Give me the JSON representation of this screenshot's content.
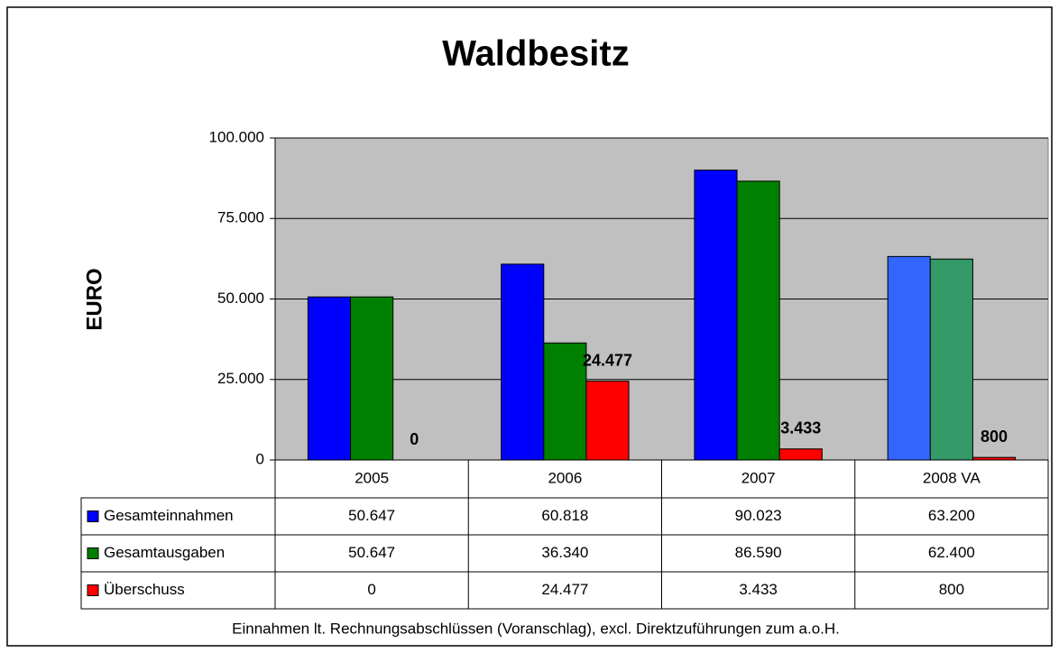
{
  "chart_data": {
    "type": "bar",
    "title": "Waldbesitz",
    "y_label": "EURO",
    "footnote": "Einnahmen lt. Rechnungsabschlüssen (Voranschlag), excl. Direktzuführungen zum a.o.H.",
    "categories": [
      "2005",
      "2006",
      "2007",
      "2008 VA"
    ],
    "series": [
      {
        "name": "Gesamteinnahmen",
        "color": "#0000ff",
        "point_colors": [
          "#0000ff",
          "#0000ff",
          "#0000ff",
          "#3366ff"
        ],
        "values": [
          50647,
          60818,
          90023,
          63200
        ],
        "value_labels": [
          "50.647",
          "60.818",
          "90.023",
          "63.200"
        ]
      },
      {
        "name": "Gesamtausgaben",
        "color": "#008000",
        "point_colors": [
          "#008000",
          "#008000",
          "#008000",
          "#339966"
        ],
        "values": [
          50647,
          36340,
          86590,
          62400
        ],
        "value_labels": [
          "50.647",
          "36.340",
          "86.590",
          "62.400"
        ]
      },
      {
        "name": "Überschuss",
        "color": "#ff0000",
        "point_colors": [
          "#ff0000",
          "#ff0000",
          "#ff0000",
          "#ff0000"
        ],
        "values": [
          0,
          24477,
          3433,
          800
        ],
        "value_labels": [
          "0",
          "24.477",
          "3.433",
          "800"
        ],
        "data_labels": true
      }
    ],
    "ylim": [
      0,
      100000
    ],
    "yticks": [
      0,
      {
        "value": 25000,
        "label": "25.000"
      },
      {
        "value": 50000,
        "label": "50.000"
      },
      {
        "value": 75000,
        "label": "75.000"
      },
      {
        "value": 100000,
        "label": "100.000"
      }
    ],
    "grid": true,
    "plot_background": "#c0c0c0"
  }
}
